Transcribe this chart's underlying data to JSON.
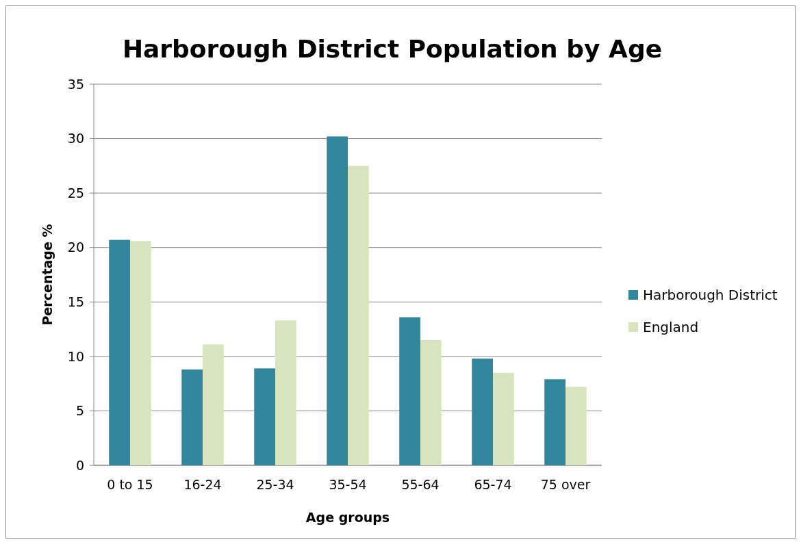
{
  "chart_data": {
    "type": "bar",
    "title": "Harborough District Population by Age",
    "xlabel": "Age groups",
    "ylabel": "Percentage %",
    "categories": [
      "0 to 15",
      "16-24",
      "25-34",
      "35-54",
      "55-64",
      "65-74",
      "75 over"
    ],
    "series": [
      {
        "name": "Harborough District",
        "color": "#31859c",
        "values": [
          20.7,
          8.8,
          8.9,
          30.2,
          13.6,
          9.8,
          7.9
        ]
      },
      {
        "name": "England",
        "color": "#d7e4bd",
        "values": [
          20.6,
          11.1,
          13.3,
          27.5,
          11.5,
          8.5,
          7.2
        ]
      }
    ],
    "ylim": [
      0,
      35
    ],
    "yticks": [
      0,
      5,
      10,
      15,
      20,
      25,
      30,
      35
    ],
    "grid": "y",
    "legend": "right"
  }
}
